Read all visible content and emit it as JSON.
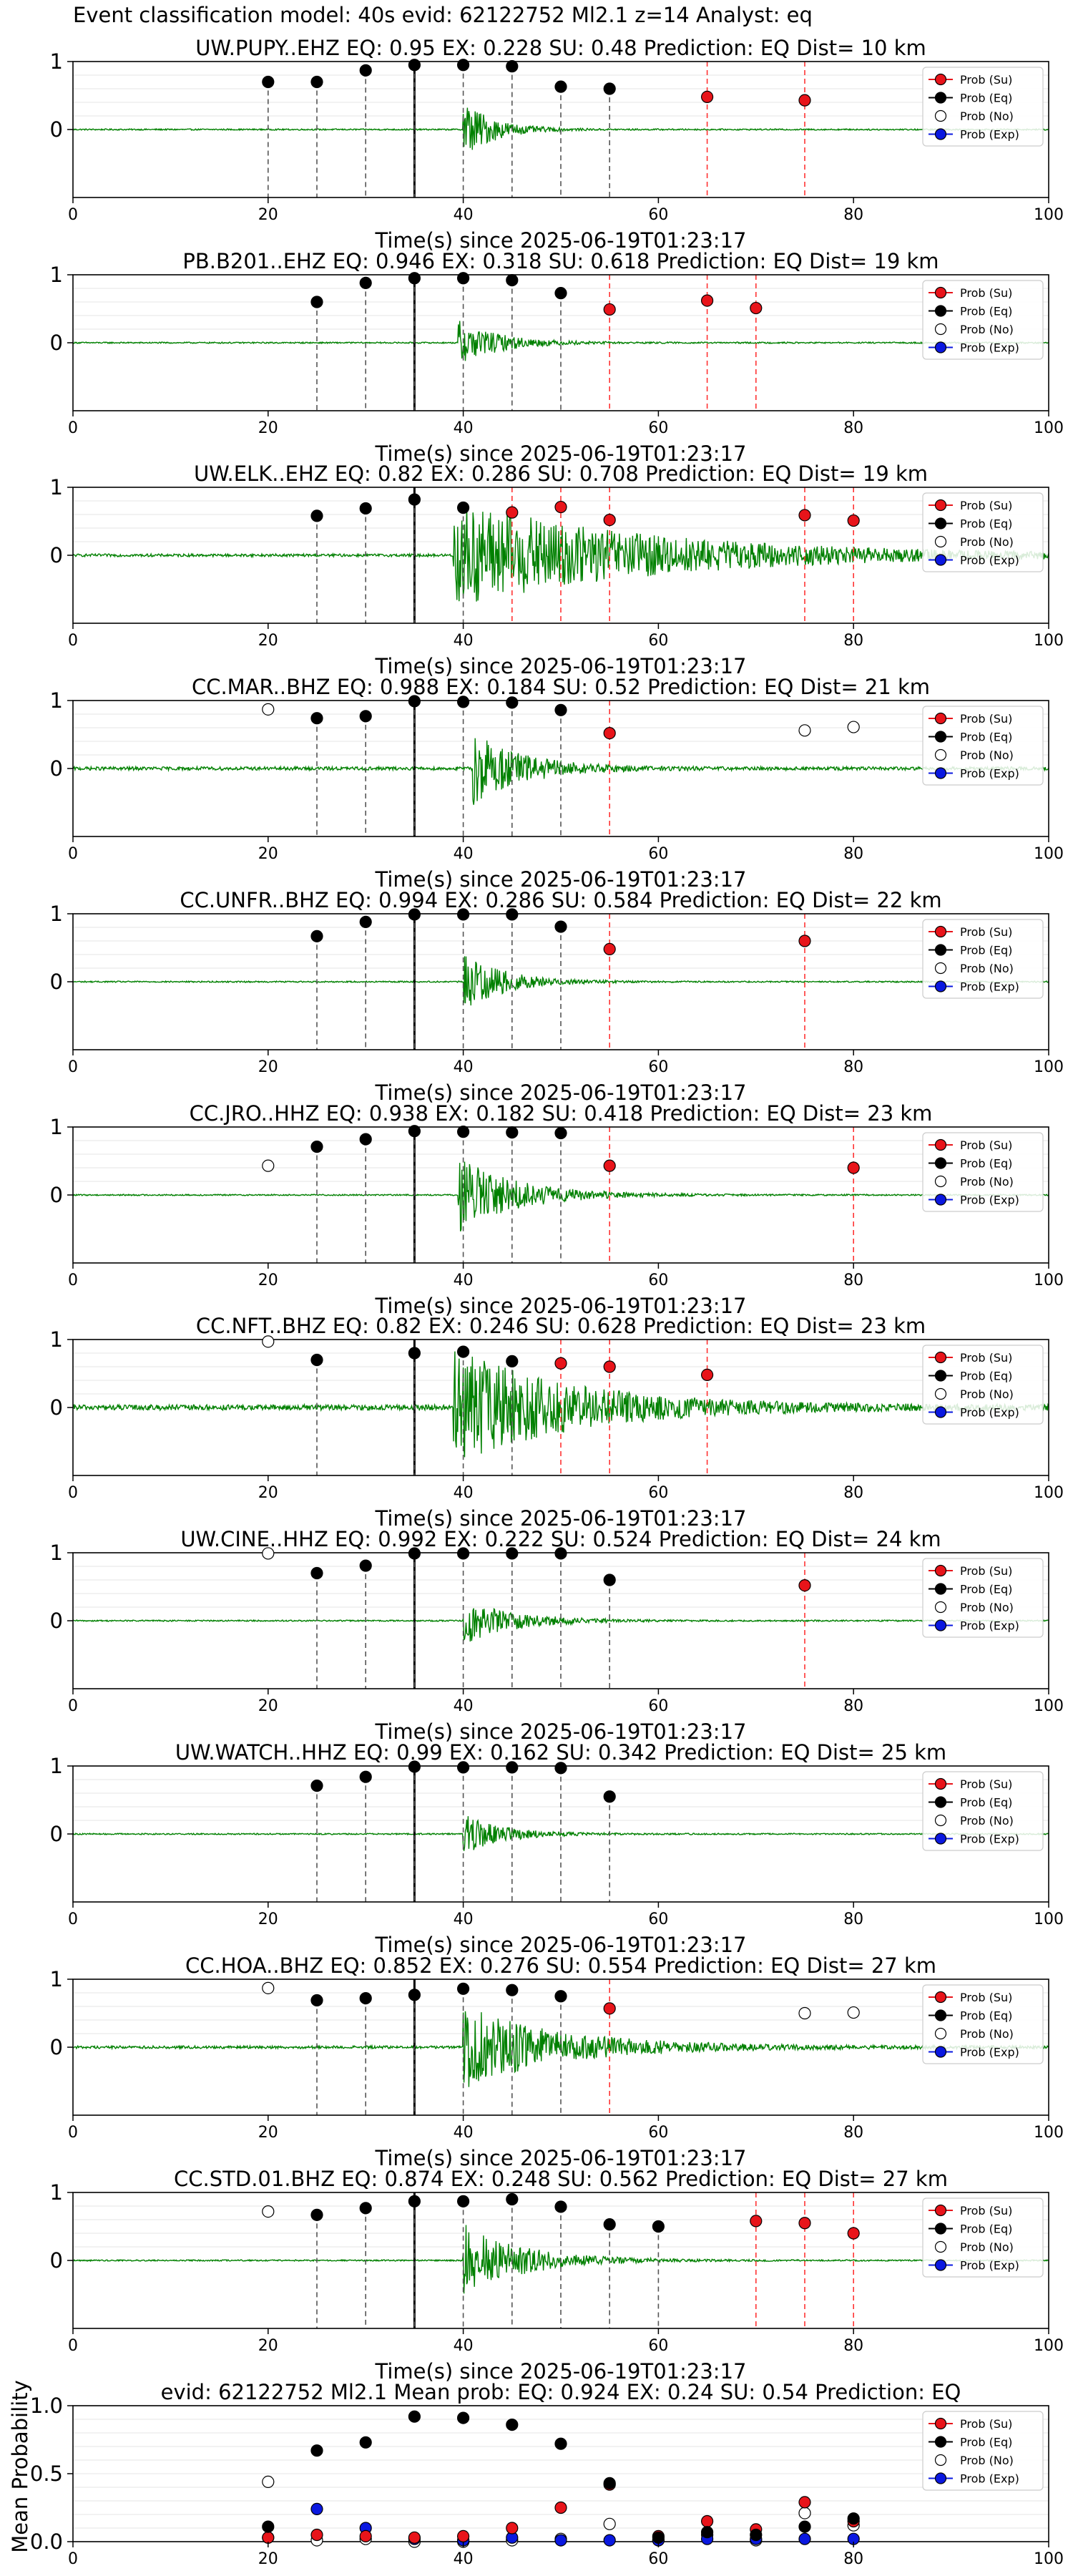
{
  "figure_title": "Event classification model: 40s evid: 62122752 Ml2.1 z=14 Analyst: eq",
  "legend_labels": [
    "Prob (Su)",
    "Prob (Eq)",
    "Prob (No)",
    "Prob (Exp)"
  ],
  "colors": {
    "waveform": "#008000",
    "su": "#e8141a",
    "eq": "#000000",
    "no": "#ffffff",
    "exp": "#0a18e0",
    "eq_line": "#555555",
    "su_line": "#ff3333",
    "pick_line": "#000000"
  },
  "chart_data": [
    {
      "type": "scatter",
      "title": "UW.PUPY..EHZ   EQ: 0.95  EX: 0.228  SU: 0.48   Prediction: EQ    Dist= 10 km",
      "xlabel": "Time(s) since 2025-06-19T01:23:17",
      "ylabel": "",
      "xlim": [
        0,
        100
      ],
      "ylim": [
        -1,
        1
      ],
      "xticks": [
        0,
        20,
        40,
        60,
        80,
        100
      ],
      "yticks": [
        0,
        1
      ],
      "pick_time": 35,
      "onset": 40,
      "amplitude": 0.45,
      "decay": 3,
      "noise": 0.01,
      "eq_points": [
        [
          20,
          0.7
        ],
        [
          25,
          0.7
        ],
        [
          30,
          0.87
        ],
        [
          35,
          0.95
        ],
        [
          40,
          0.95
        ],
        [
          45,
          0.93
        ],
        [
          50,
          0.63
        ],
        [
          55,
          0.6
        ]
      ],
      "su_points": [
        [
          65,
          0.48
        ],
        [
          75,
          0.43
        ]
      ],
      "no_points": [],
      "exp_points": []
    },
    {
      "type": "scatter",
      "title": "PB.B201..EHZ   EQ: 0.946  EX: 0.318  SU: 0.618   Prediction: EQ    Dist= 19 km",
      "xlabel": "Time(s) since 2025-06-19T01:23:17",
      "ylabel": "",
      "xlim": [
        0,
        100
      ],
      "ylim": [
        -1,
        1
      ],
      "xticks": [
        0,
        20,
        40,
        60,
        80,
        100
      ],
      "yticks": [
        0,
        1
      ],
      "pick_time": 35,
      "onset": 39.5,
      "amplitude": 0.35,
      "decay": 4,
      "noise": 0.01,
      "eq_points": [
        [
          25,
          0.6
        ],
        [
          30,
          0.88
        ],
        [
          35,
          0.95
        ],
        [
          40,
          0.95
        ],
        [
          45,
          0.92
        ],
        [
          50,
          0.73
        ]
      ],
      "su_points": [
        [
          55,
          0.49
        ],
        [
          65,
          0.62
        ],
        [
          70,
          0.51
        ]
      ],
      "no_points": [],
      "exp_points": []
    },
    {
      "type": "scatter",
      "title": "UW.ELK..EHZ   EQ: 0.82  EX: 0.286  SU: 0.708   Prediction: EQ    Dist= 19 km",
      "xlabel": "Time(s) since 2025-06-19T01:23:17",
      "ylabel": "",
      "xlim": [
        0,
        100
      ],
      "ylim": [
        -1,
        1
      ],
      "xticks": [
        0,
        20,
        40,
        60,
        80,
        100
      ],
      "yticks": [
        0,
        1
      ],
      "pick_time": 35,
      "onset": 39,
      "amplitude": 0.8,
      "decay": 20,
      "noise": 0.02,
      "eq_points": [
        [
          25,
          0.58
        ],
        [
          30,
          0.69
        ],
        [
          35,
          0.82
        ],
        [
          40,
          0.7
        ]
      ],
      "su_points": [
        [
          45,
          0.63
        ],
        [
          50,
          0.71
        ],
        [
          55,
          0.52
        ],
        [
          75,
          0.59
        ],
        [
          80,
          0.51
        ]
      ],
      "no_points": [],
      "exp_points": []
    },
    {
      "type": "scatter",
      "title": "CC.MAR..BHZ   EQ: 0.988  EX: 0.184  SU: 0.52   Prediction: EQ    Dist= 21 km",
      "xlabel": "Time(s) since 2025-06-19T01:23:17",
      "ylabel": "",
      "xlim": [
        0,
        100
      ],
      "ylim": [
        -1,
        1
      ],
      "xticks": [
        0,
        20,
        40,
        60,
        80,
        100
      ],
      "yticks": [
        0,
        1
      ],
      "pick_time": 35,
      "onset": 41,
      "amplitude": 0.55,
      "decay": 5,
      "noise": 0.025,
      "eq_points": [
        [
          25,
          0.74
        ],
        [
          30,
          0.77
        ],
        [
          35,
          0.99
        ],
        [
          40,
          0.98
        ],
        [
          45,
          0.97
        ],
        [
          50,
          0.86
        ]
      ],
      "su_points": [
        [
          55,
          0.52
        ]
      ],
      "no_points": [
        [
          20,
          0.87
        ],
        [
          75,
          0.56
        ],
        [
          80,
          0.61
        ]
      ],
      "exp_points": []
    },
    {
      "type": "scatter",
      "title": "CC.UNFR..BHZ   EQ: 0.994  EX: 0.286  SU: 0.584   Prediction: EQ    Dist= 22 km",
      "xlabel": "Time(s) since 2025-06-19T01:23:17",
      "ylabel": "",
      "xlim": [
        0,
        100
      ],
      "ylim": [
        -1,
        1
      ],
      "xticks": [
        0,
        20,
        40,
        60,
        80,
        100
      ],
      "yticks": [
        0,
        1
      ],
      "pick_time": 35,
      "onset": 40,
      "amplitude": 0.45,
      "decay": 4,
      "noise": 0.01,
      "eq_points": [
        [
          25,
          0.67
        ],
        [
          30,
          0.88
        ],
        [
          35,
          0.99
        ],
        [
          40,
          0.99
        ],
        [
          45,
          0.99
        ],
        [
          50,
          0.81
        ]
      ],
      "su_points": [
        [
          55,
          0.48
        ],
        [
          75,
          0.6
        ]
      ],
      "no_points": [],
      "exp_points": []
    },
    {
      "type": "scatter",
      "title": "CC.JRO..HHZ   EQ: 0.938  EX: 0.182  SU: 0.418   Prediction: EQ    Dist= 23 km",
      "xlabel": "Time(s) since 2025-06-19T01:23:17",
      "ylabel": "",
      "xlim": [
        0,
        100
      ],
      "ylim": [
        -1,
        1
      ],
      "xticks": [
        0,
        20,
        40,
        60,
        80,
        100
      ],
      "yticks": [
        0,
        1
      ],
      "pick_time": 35,
      "onset": 39.5,
      "amplitude": 0.55,
      "decay": 6,
      "noise": 0.01,
      "eq_points": [
        [
          25,
          0.71
        ],
        [
          30,
          0.82
        ],
        [
          35,
          0.94
        ],
        [
          40,
          0.93
        ],
        [
          45,
          0.92
        ],
        [
          50,
          0.91
        ]
      ],
      "su_points": [
        [
          55,
          0.43
        ],
        [
          80,
          0.4
        ]
      ],
      "no_points": [
        [
          20,
          0.43
        ]
      ],
      "exp_points": []
    },
    {
      "type": "scatter",
      "title": "CC.NFT..BHZ   EQ: 0.82  EX: 0.246  SU: 0.628   Prediction: EQ    Dist= 23 km",
      "xlabel": "Time(s) since 2025-06-19T01:23:17",
      "ylabel": "",
      "xlim": [
        0,
        100
      ],
      "ylim": [
        -1,
        1
      ],
      "xticks": [
        0,
        20,
        40,
        60,
        80,
        100
      ],
      "yticks": [
        0,
        1
      ],
      "pick_time": 35,
      "onset": 39,
      "amplitude": 0.85,
      "decay": 12,
      "noise": 0.04,
      "eq_points": [
        [
          25,
          0.7
        ],
        [
          35,
          0.8
        ],
        [
          40,
          0.82
        ],
        [
          45,
          0.68
        ]
      ],
      "su_points": [
        [
          50,
          0.65
        ],
        [
          55,
          0.6
        ],
        [
          65,
          0.48
        ]
      ],
      "no_points": [
        [
          20,
          0.97
        ]
      ],
      "exp_points": []
    },
    {
      "type": "scatter",
      "title": "UW.CINE..HHZ   EQ: 0.992  EX: 0.222  SU: 0.524   Prediction: EQ    Dist= 24 km",
      "xlabel": "Time(s) since 2025-06-19T01:23:17",
      "ylabel": "",
      "xlim": [
        0,
        100
      ],
      "ylim": [
        -1,
        1
      ],
      "xticks": [
        0,
        20,
        40,
        60,
        80,
        100
      ],
      "yticks": [
        0,
        1
      ],
      "pick_time": 35,
      "onset": 40,
      "amplitude": 0.35,
      "decay": 5,
      "noise": 0.01,
      "eq_points": [
        [
          25,
          0.7
        ],
        [
          30,
          0.81
        ],
        [
          35,
          0.99
        ],
        [
          40,
          0.99
        ],
        [
          45,
          0.99
        ],
        [
          50,
          0.99
        ],
        [
          55,
          0.6
        ]
      ],
      "su_points": [
        [
          75,
          0.52
        ]
      ],
      "no_points": [
        [
          20,
          0.99
        ]
      ],
      "exp_points": []
    },
    {
      "type": "scatter",
      "title": "UW.WATCH..HHZ   EQ: 0.99  EX: 0.162  SU: 0.342   Prediction: EQ    Dist= 25 km",
      "xlabel": "Time(s) since 2025-06-19T01:23:17",
      "ylabel": "",
      "xlim": [
        0,
        100
      ],
      "ylim": [
        -1,
        1
      ],
      "xticks": [
        0,
        20,
        40,
        60,
        80,
        100
      ],
      "yticks": [
        0,
        1
      ],
      "pick_time": 35,
      "onset": 40,
      "amplitude": 0.3,
      "decay": 4,
      "noise": 0.01,
      "eq_points": [
        [
          25,
          0.71
        ],
        [
          30,
          0.84
        ],
        [
          35,
          0.99
        ],
        [
          40,
          0.98
        ],
        [
          45,
          0.98
        ],
        [
          50,
          0.97
        ],
        [
          55,
          0.55
        ]
      ],
      "su_points": [],
      "no_points": [],
      "exp_points": []
    },
    {
      "type": "scatter",
      "title": "CC.HOA..BHZ   EQ: 0.852  EX: 0.276  SU: 0.554   Prediction: EQ    Dist= 27 km",
      "xlabel": "Time(s) since 2025-06-19T01:23:17",
      "ylabel": "",
      "xlim": [
        0,
        100
      ],
      "ylim": [
        -1,
        1
      ],
      "xticks": [
        0,
        20,
        40,
        60,
        80,
        100
      ],
      "yticks": [
        0,
        1
      ],
      "pick_time": 35,
      "onset": 40,
      "amplitude": 0.6,
      "decay": 10,
      "noise": 0.02,
      "eq_points": [
        [
          25,
          0.69
        ],
        [
          30,
          0.72
        ],
        [
          35,
          0.77
        ],
        [
          40,
          0.86
        ],
        [
          45,
          0.84
        ],
        [
          50,
          0.75
        ]
      ],
      "su_points": [
        [
          55,
          0.57
        ]
      ],
      "no_points": [
        [
          20,
          0.87
        ],
        [
          75,
          0.5
        ],
        [
          80,
          0.51
        ]
      ],
      "exp_points": []
    },
    {
      "type": "scatter",
      "title": "CC.STD.01.BHZ   EQ: 0.874  EX: 0.248  SU: 0.562   Prediction: EQ    Dist= 27 km",
      "xlabel": "Time(s) since 2025-06-19T01:23:17",
      "ylabel": "",
      "xlim": [
        0,
        100
      ],
      "ylim": [
        -1,
        1
      ],
      "xticks": [
        0,
        20,
        40,
        60,
        80,
        100
      ],
      "yticks": [
        0,
        1
      ],
      "pick_time": 35,
      "onset": 40,
      "amplitude": 0.55,
      "decay": 6,
      "noise": 0.01,
      "eq_points": [
        [
          25,
          0.67
        ],
        [
          30,
          0.77
        ],
        [
          35,
          0.87
        ],
        [
          40,
          0.87
        ],
        [
          45,
          0.9
        ],
        [
          50,
          0.79
        ],
        [
          55,
          0.53
        ],
        [
          60,
          0.5
        ]
      ],
      "su_points": [
        [
          70,
          0.58
        ],
        [
          75,
          0.55
        ],
        [
          80,
          0.4
        ]
      ],
      "no_points": [
        [
          20,
          0.72
        ]
      ],
      "exp_points": []
    },
    {
      "type": "scatter",
      "title": "evid: 62122752  Ml2.1   Mean prob:   EQ: 0.924  EX: 0.24  SU: 0.54   Prediction: EQ",
      "xlabel": "",
      "ylabel": "Mean Probability",
      "xlim": [
        0,
        100
      ],
      "ylim": [
        0,
        1
      ],
      "xticks": [
        0,
        20,
        40,
        60,
        80,
        100
      ],
      "yticks": [
        0,
        0.5,
        1
      ],
      "ytick_labels": [
        "0.0",
        "0.5",
        "1.0"
      ],
      "eq_points": [
        [
          20,
          0.11
        ],
        [
          25,
          0.67
        ],
        [
          30,
          0.73
        ],
        [
          35,
          0.92
        ],
        [
          40,
          0.91
        ],
        [
          45,
          0.86
        ],
        [
          50,
          0.72
        ],
        [
          55,
          0.43
        ],
        [
          60,
          0.03
        ],
        [
          65,
          0.07
        ],
        [
          70,
          0.05
        ],
        [
          75,
          0.11
        ],
        [
          80,
          0.17
        ]
      ],
      "su_points": [
        [
          20,
          0.03
        ],
        [
          25,
          0.05
        ],
        [
          30,
          0.04
        ],
        [
          35,
          0.03
        ],
        [
          40,
          0.04
        ],
        [
          45,
          0.1
        ],
        [
          50,
          0.25
        ],
        [
          55,
          0.42
        ],
        [
          60,
          0.04
        ],
        [
          65,
          0.15
        ],
        [
          70,
          0.09
        ],
        [
          75,
          0.29
        ],
        [
          80,
          0.15
        ]
      ],
      "no_points": [
        [
          20,
          0.44
        ],
        [
          25,
          0.01
        ],
        [
          30,
          0.02
        ],
        [
          35,
          0.0
        ],
        [
          40,
          0.0
        ],
        [
          45,
          0.01
        ],
        [
          50,
          0.02
        ],
        [
          55,
          0.13
        ],
        [
          60,
          0.01
        ],
        [
          65,
          0.05
        ],
        [
          70,
          0.01
        ],
        [
          75,
          0.21
        ],
        [
          80,
          0.12
        ]
      ],
      "exp_points": [
        [
          20,
          0.03
        ],
        [
          25,
          0.24
        ],
        [
          30,
          0.1
        ],
        [
          35,
          0.02
        ],
        [
          40,
          0.01
        ],
        [
          45,
          0.03
        ],
        [
          50,
          0.01
        ],
        [
          55,
          0.01
        ],
        [
          60,
          0.01
        ],
        [
          65,
          0.02
        ],
        [
          70,
          0.02
        ],
        [
          75,
          0.02
        ],
        [
          80,
          0.02
        ]
      ]
    }
  ]
}
